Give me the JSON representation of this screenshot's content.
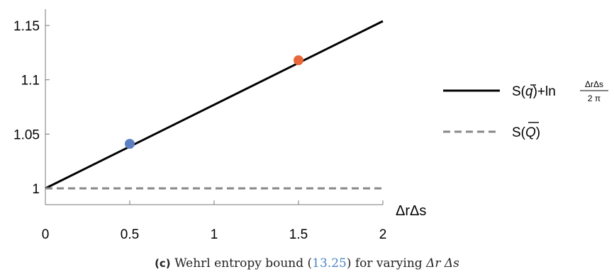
{
  "chart_data": {
    "type": "line",
    "xlabel": "ΔrΔs",
    "xlim": [
      0,
      2
    ],
    "ylim": [
      0.985,
      1.165
    ],
    "x_ticks": [
      {
        "value": 0,
        "label": "0",
        "color": "#000000"
      },
      {
        "value": 0.5,
        "label": "0.5",
        "color": "#5b7fbf"
      },
      {
        "value": 1,
        "label": "1",
        "color": "#000000"
      },
      {
        "value": 1.5,
        "label": "1.5",
        "color": "#e8673a"
      },
      {
        "value": 2,
        "label": "2",
        "color": "#000000"
      }
    ],
    "y_ticks": [
      {
        "value": 1,
        "label": "1"
      },
      {
        "value": 1.05,
        "label": "1.05"
      },
      {
        "value": 1.1,
        "label": "1.1"
      },
      {
        "value": 1.15,
        "label": "1.15"
      }
    ],
    "series": [
      {
        "name": "S(q̄)+ln ΔrΔs / 2π",
        "style": "solid",
        "color": "#000000",
        "x": [
          0,
          2
        ],
        "y": [
          1.0,
          1.154
        ]
      },
      {
        "name": "S(Q̄)",
        "style": "dashed",
        "color": "#888888",
        "x": [
          0,
          2
        ],
        "y": [
          1.0,
          1.0
        ]
      }
    ],
    "points": [
      {
        "x": 0.5,
        "y": 1.041,
        "color": "#5b7fbf"
      },
      {
        "x": 1.5,
        "y": 1.118,
        "color": "#e8673a"
      }
    ],
    "grid": false,
    "legend_position": "right"
  },
  "legend": {
    "solid": {
      "prefix": "S(",
      "q": "q",
      "mid": ")+ln",
      "num": "ΔrΔs",
      "den": "2 π"
    },
    "dashed": {
      "prefix": "S(",
      "q": "Q",
      "suffix": ")"
    }
  },
  "caption": {
    "tag": "(c)",
    "text1": " Wehrl entropy bound (",
    "ref": "13.25",
    "text2": ") for varying ",
    "var1": "Δr",
    "space": " ",
    "var2": "Δs"
  }
}
